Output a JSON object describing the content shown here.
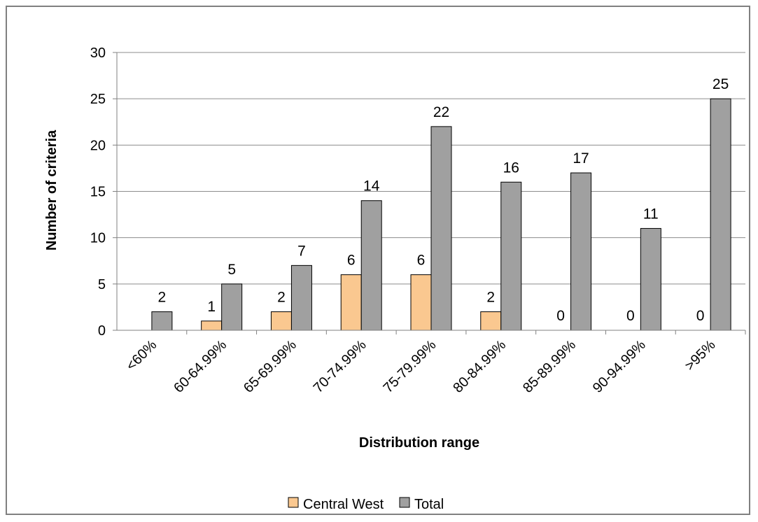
{
  "chart_data": {
    "type": "bar",
    "xlabel": "Distribution range",
    "ylabel": "Number of criteria",
    "ylim": [
      0,
      30
    ],
    "yticks": [
      0,
      5,
      10,
      15,
      20,
      25,
      30
    ],
    "grid": true,
    "legend_position": "bottom",
    "categories": [
      "<60%",
      "60-64.99%",
      "65-69.99%",
      "70-74.99%",
      "75-79.99%",
      "80-84.99%",
      "85-89.99%",
      "90-94.99%",
      ">95%"
    ],
    "series": [
      {
        "name": "Central West",
        "color": "#fac890",
        "values": [
          null,
          1,
          2,
          6,
          6,
          2,
          0,
          0,
          0
        ]
      },
      {
        "name": "Total",
        "color": "#a0a0a0",
        "values": [
          2,
          5,
          7,
          14,
          22,
          16,
          17,
          11,
          25
        ]
      }
    ]
  }
}
